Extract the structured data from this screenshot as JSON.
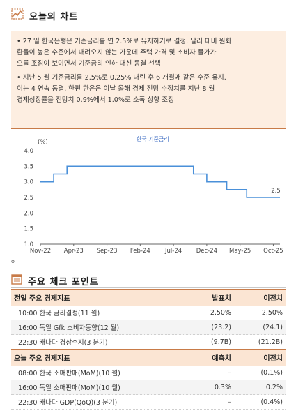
{
  "sections": {
    "chart_title": "오늘의 차트",
    "checkpoints_title": "주요 체크 포인트"
  },
  "summary": {
    "bullets": [
      {
        "lines": [
          "27 일 한국은행은 기준금리를 연 2.5%로 유지하기로 결정. 달러 대비 원화",
          "환율이 높은 수준에서 내려오지 않는 가운데 주택 가격 및 소비자 물가가",
          "오를 조짐이 보이면서 기준금리 인하 대신 동결 선택"
        ]
      },
      {
        "lines": [
          "지난 5 월 기준금리를 2.5%로 0.25% 내린 후 6 개월째 같은 수준 유지.",
          "이는 4 연속 동결. 한편 한은은 이날 올해 경제 전망 수정치를 지난 8 월",
          "경제성장률을 전망치 0.9%에서 1.0%로 소폭 상향 조정"
        ]
      }
    ]
  },
  "chart_data": {
    "type": "line",
    "series": [
      {
        "name": "한국 기준금리",
        "color": "#4a90d9",
        "points": [
          {
            "x": "2022-11",
            "y": 3.0
          },
          {
            "x": "2023-01",
            "y": 3.25
          },
          {
            "x": "2023-03",
            "y": 3.5
          },
          {
            "x": "2024-10",
            "y": 3.25
          },
          {
            "x": "2024-12",
            "y": 3.0
          },
          {
            "x": "2025-03",
            "y": 2.75
          },
          {
            "x": "2025-06",
            "y": 2.5
          },
          {
            "x": "2025-11",
            "y": 2.5
          }
        ]
      }
    ],
    "end_label": "2.5",
    "ylabel": "(%)",
    "ylim": [
      1.0,
      4.0
    ],
    "yticks": [
      "4.0",
      "3.5",
      "3.0",
      "2.5",
      "2.0",
      "1.5",
      "1.0"
    ],
    "xticks": [
      "Nov-22",
      "Apr-23",
      "Sep-23",
      "Feb-24",
      "Jul-24",
      "Dec-24",
      "May-25",
      "Oct-25"
    ],
    "grid": false,
    "legend_position": "top-center"
  },
  "note_mark": "o",
  "table_yesterday": {
    "headers": [
      "전일 주요 경제지표",
      "발표치",
      "이전치"
    ],
    "rows": [
      {
        "time": "10:00",
        "name": "한국 금리결정(11 월)",
        "actual": "2.50%",
        "previous": "2.50%"
      },
      {
        "time": "16:00",
        "name": "독일 Gfk 소비자동향(12 월)",
        "actual": "(23.2)",
        "previous": "(24.1)"
      },
      {
        "time": "22:30",
        "name": "캐나다 경상수지(3 분기)",
        "actual": "(9.7B)",
        "previous": "(21.2B)"
      }
    ]
  },
  "table_today": {
    "headers": [
      "오늘 주요 경제지표",
      "예측치",
      "이전치"
    ],
    "rows": [
      {
        "time": "08:00",
        "name": "한국 소매판매(MoM)(10 월)",
        "forecast": "–",
        "previous": "(0.1%)"
      },
      {
        "time": "16:00",
        "name": "독일 소매판매(MoM)(10 월)",
        "forecast": "0.3%",
        "previous": "0.2%"
      },
      {
        "time": "22:30",
        "name": "캐나다 GDP(QoQ)(3 분기)",
        "forecast": "–",
        "previous": "(0.4%)"
      }
    ]
  },
  "colors": {
    "accent": "#c87b48",
    "summary_bg": "#fdeee1",
    "header_bg": "#fbe5d3",
    "line": "#4a90d9"
  }
}
